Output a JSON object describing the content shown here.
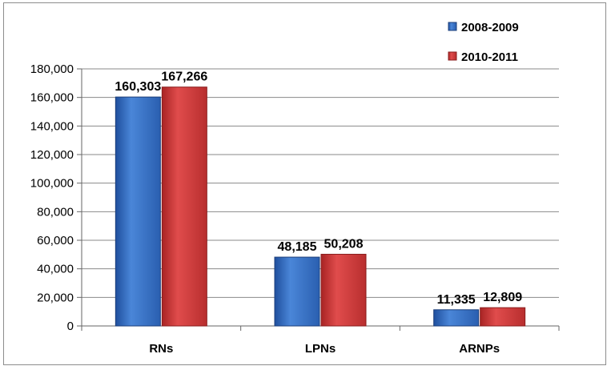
{
  "chart_data": {
    "type": "bar",
    "categories": [
      "RNs",
      "LPNs",
      "ARNPs"
    ],
    "series": [
      {
        "name": "2008-2009",
        "values": [
          160303,
          48185,
          11335
        ],
        "color": "#3a73c6"
      },
      {
        "name": "2010-2011",
        "values": [
          167266,
          50208,
          12809
        ],
        "color": "#d63c3c"
      }
    ],
    "data_labels": [
      [
        "160,303",
        "48,185",
        "11,335"
      ],
      [
        "167,266",
        "50,208",
        "12,809"
      ]
    ],
    "title": "",
    "xlabel": "",
    "ylabel": "",
    "ylim": [
      0,
      180000
    ],
    "yticks": [
      0,
      20000,
      40000,
      60000,
      80000,
      100000,
      120000,
      140000,
      160000,
      180000
    ],
    "ytick_labels": [
      "0",
      "20,000",
      "40,000",
      "60,000",
      "80,000",
      "100,000",
      "120,000",
      "140,000",
      "160,000",
      "180,000"
    ],
    "grid": true,
    "legend_position": "top-right"
  }
}
